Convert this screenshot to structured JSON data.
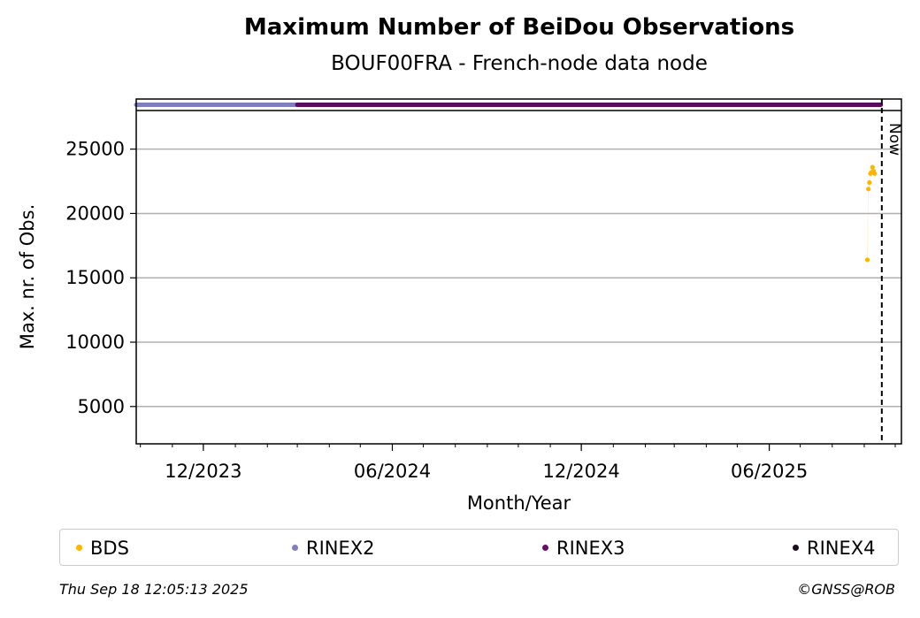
{
  "chart_data": {
    "type": "scatter",
    "title": "Maximum Number of BeiDou Observations",
    "subtitle": "BOUF00FRA - French-node data node",
    "xlabel": "Month/Year",
    "ylabel": "Max. nr. of Obs.",
    "x_ticks": [
      "12/2023",
      "06/2024",
      "12/2024",
      "06/2025"
    ],
    "x_range": [
      "2023-09-27",
      "2025-10-07"
    ],
    "y_ticks": [
      5000,
      10000,
      15000,
      20000,
      25000
    ],
    "ylim": [
      2100,
      28000
    ],
    "grid": "y",
    "now_label": "Now",
    "now_date": "2025-09-18",
    "series": [
      {
        "name": "BDS",
        "color": "#FFB400",
        "points": [
          {
            "x": "2025-09-04",
            "y": 16400
          },
          {
            "x": "2025-09-05",
            "y": 21900
          },
          {
            "x": "2025-09-06",
            "y": 22400
          },
          {
            "x": "2025-09-07",
            "y": 23100
          },
          {
            "x": "2025-09-08",
            "y": 23200
          },
          {
            "x": "2025-09-09",
            "y": 23600
          },
          {
            "x": "2025-09-10",
            "y": 23300
          },
          {
            "x": "2025-09-11",
            "y": 23100
          }
        ]
      }
    ],
    "availability": [
      {
        "name": "RINEX2",
        "color": "#7F7FBF",
        "start": "2023-09-27",
        "end": "2024-03-01"
      },
      {
        "name": "RINEX3",
        "color": "#5C0A5C",
        "start": "2024-03-01",
        "end": "2025-09-17"
      },
      {
        "name": "RINEX4",
        "color": "#1F0A1F",
        "start": null,
        "end": null
      }
    ]
  },
  "legend": [
    {
      "label": "BDS",
      "color": "#FFB400"
    },
    {
      "label": "RINEX2",
      "color": "#7F7FBF"
    },
    {
      "label": "RINEX3",
      "color": "#6B0A6B"
    },
    {
      "label": "RINEX4",
      "color": "#1F0A1F"
    }
  ],
  "footer": {
    "timestamp": "Thu Sep 18 12:05:13 2025",
    "credit": "©GNSS@ROB"
  }
}
